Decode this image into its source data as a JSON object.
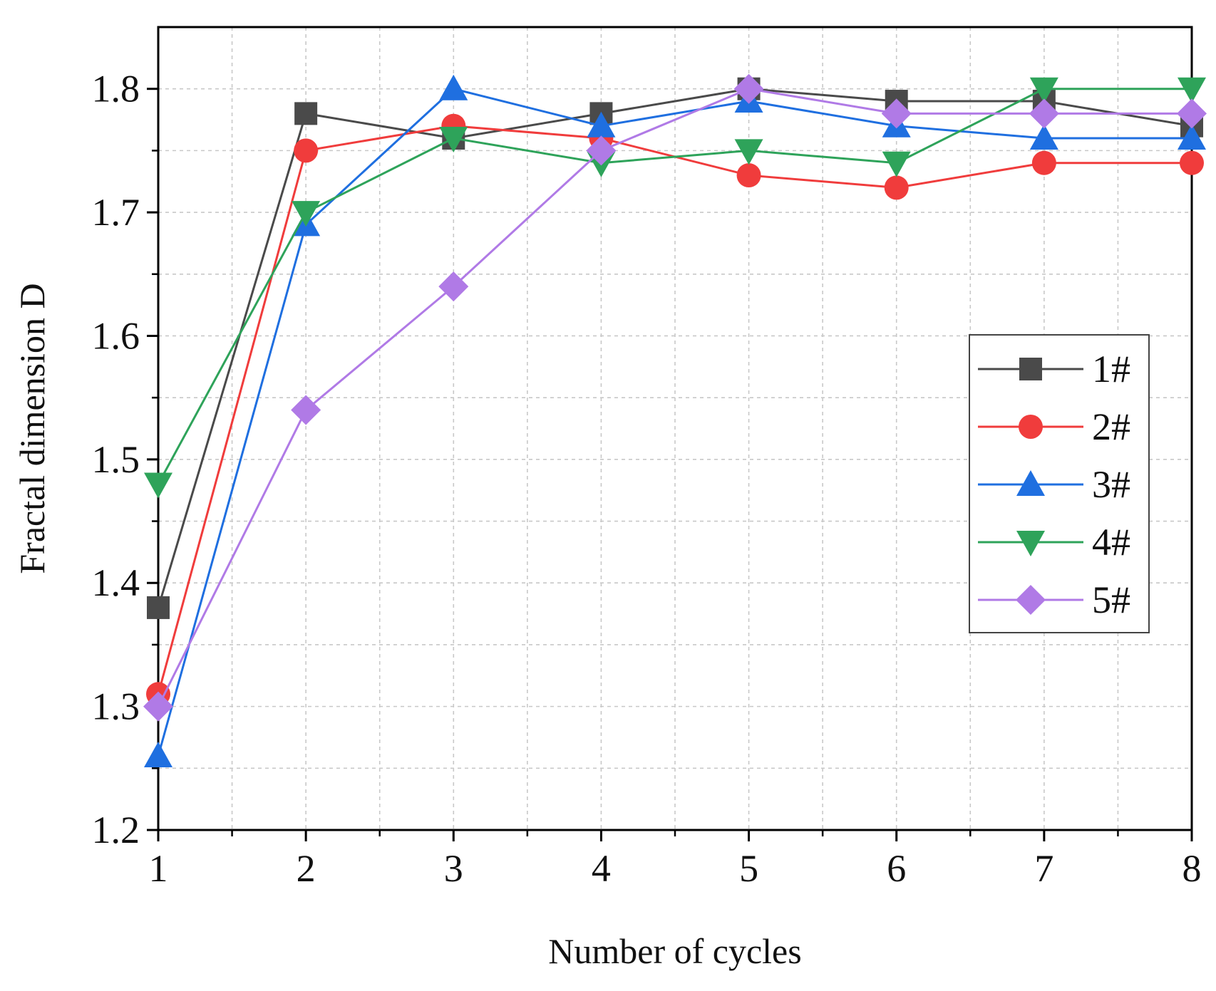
{
  "chart_data": {
    "type": "line",
    "xlabel": "Number of cycles",
    "ylabel": "Fractal dimension D",
    "x": [
      1,
      2,
      3,
      4,
      5,
      6,
      7,
      8
    ],
    "xlim": [
      1,
      8
    ],
    "ylim": [
      1.2,
      1.85
    ],
    "x_ticks": [
      "1",
      "2",
      "3",
      "4",
      "5",
      "6",
      "7",
      "8"
    ],
    "y_ticks": [
      "1.2",
      "1.3",
      "1.4",
      "1.5",
      "1.6",
      "1.7",
      "1.8"
    ],
    "grid": true,
    "legend_position": "right",
    "series": [
      {
        "name": "1#",
        "color": "#4a4a4a",
        "marker": "square",
        "values": [
          1.38,
          1.78,
          1.76,
          1.78,
          1.8,
          1.79,
          1.79,
          1.77
        ]
      },
      {
        "name": "2#",
        "color": "#f03c3c",
        "marker": "circle",
        "values": [
          1.31,
          1.75,
          1.77,
          1.76,
          1.73,
          1.72,
          1.74,
          1.74
        ]
      },
      {
        "name": "3#",
        "color": "#1f6fe0",
        "marker": "triangle-up",
        "values": [
          1.26,
          1.69,
          1.8,
          1.77,
          1.79,
          1.77,
          1.76,
          1.76
        ]
      },
      {
        "name": "4#",
        "color": "#2ea35a",
        "marker": "triangle-down",
        "values": [
          1.48,
          1.7,
          1.76,
          1.74,
          1.75,
          1.74,
          1.8,
          1.8
        ]
      },
      {
        "name": "5#",
        "color": "#b07ae6",
        "marker": "diamond",
        "values": [
          1.3,
          1.54,
          1.64,
          1.75,
          1.8,
          1.78,
          1.78,
          1.78
        ]
      }
    ]
  }
}
